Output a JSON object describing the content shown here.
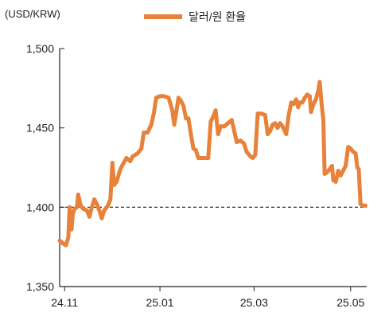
{
  "chart_data": {
    "type": "line",
    "unit_label": "(USD/KRW)",
    "series": [
      {
        "name": "달러/원 환율",
        "color": "#E8823A",
        "points": [
          [
            0.0,
            1379
          ],
          [
            1.5,
            1377
          ],
          [
            2.5,
            1376
          ],
          [
            3.5,
            1381
          ],
          [
            4.0,
            1400
          ],
          [
            4.8,
            1386
          ],
          [
            5.3,
            1396
          ],
          [
            6.0,
            1399
          ],
          [
            7.0,
            1400
          ],
          [
            7.5,
            1408
          ],
          [
            8.5,
            1401
          ],
          [
            9.5,
            1399
          ],
          [
            11.0,
            1398
          ],
          [
            12.0,
            1394
          ],
          [
            13.0,
            1400
          ],
          [
            14.0,
            1405
          ],
          [
            15.0,
            1402
          ],
          [
            16.0,
            1398
          ],
          [
            17.0,
            1393
          ],
          [
            18.0,
            1398
          ],
          [
            19.5,
            1401
          ],
          [
            20.5,
            1405
          ],
          [
            21.3,
            1428
          ],
          [
            22.0,
            1414
          ],
          [
            23.0,
            1416
          ],
          [
            24.5,
            1424
          ],
          [
            25.5,
            1427
          ],
          [
            27.0,
            1431
          ],
          [
            28.5,
            1429
          ],
          [
            29.5,
            1432
          ],
          [
            31.5,
            1434
          ],
          [
            33.0,
            1437
          ],
          [
            34.0,
            1447
          ],
          [
            35.5,
            1447
          ],
          [
            37.0,
            1452
          ],
          [
            38.0,
            1459
          ],
          [
            39.0,
            1469
          ],
          [
            40.5,
            1470
          ],
          [
            42.0,
            1470
          ],
          [
            44.0,
            1469
          ],
          [
            45.5,
            1461
          ],
          [
            46.3,
            1452
          ],
          [
            47.0,
            1459
          ],
          [
            48.0,
            1469
          ],
          [
            49.0,
            1467
          ],
          [
            50.0,
            1464
          ],
          [
            51.0,
            1456
          ],
          [
            52.0,
            1456
          ],
          [
            53.0,
            1446
          ],
          [
            54.0,
            1437
          ],
          [
            55.0,
            1436
          ],
          [
            56.0,
            1431
          ],
          [
            57.0,
            1431
          ],
          [
            58.5,
            1431
          ],
          [
            60.0,
            1431
          ],
          [
            61.0,
            1454
          ],
          [
            62.0,
            1457
          ],
          [
            63.0,
            1461
          ],
          [
            64.0,
            1446
          ],
          [
            65.0,
            1451
          ],
          [
            66.5,
            1451
          ],
          [
            68.0,
            1453
          ],
          [
            69.5,
            1455
          ],
          [
            70.5,
            1448
          ],
          [
            71.5,
            1441
          ],
          [
            73.0,
            1442
          ],
          [
            74.5,
            1440
          ],
          [
            75.5,
            1435
          ],
          [
            77.0,
            1432
          ],
          [
            78.0,
            1431
          ],
          [
            79.0,
            1433
          ],
          [
            80.0,
            1459
          ],
          [
            81.5,
            1459
          ],
          [
            83.0,
            1458
          ],
          [
            84.0,
            1446
          ],
          [
            85.0,
            1448
          ],
          [
            86.0,
            1452
          ],
          [
            87.0,
            1453
          ],
          [
            88.0,
            1450
          ],
          [
            89.0,
            1453
          ],
          [
            90.0,
            1451
          ],
          [
            91.5,
            1446
          ],
          [
            92.5,
            1458
          ],
          [
            93.5,
            1466
          ],
          [
            94.5,
            1465
          ],
          [
            95.5,
            1468
          ],
          [
            96.3,
            1463
          ],
          [
            97.0,
            1466
          ],
          [
            98.0,
            1466
          ],
          [
            99.0,
            1469
          ],
          [
            100.0,
            1471
          ],
          [
            101.0,
            1470
          ],
          [
            101.5,
            1460
          ],
          [
            102.5,
            1465
          ],
          [
            103.5,
            1468
          ],
          [
            104.5,
            1474
          ],
          [
            105.0,
            1479
          ],
          [
            105.8,
            1465
          ],
          [
            106.5,
            1455
          ],
          [
            107.0,
            1421
          ],
          [
            108.0,
            1422
          ],
          [
            109.0,
            1424
          ],
          [
            110.0,
            1426
          ],
          [
            110.5,
            1417
          ],
          [
            111.5,
            1416
          ],
          [
            112.5,
            1423
          ],
          [
            113.5,
            1420
          ],
          [
            114.5,
            1423
          ],
          [
            115.5,
            1426
          ],
          [
            116.5,
            1438
          ],
          [
            117.5,
            1437
          ],
          [
            118.5,
            1435
          ],
          [
            119.5,
            1434
          ],
          [
            120.2,
            1425
          ],
          [
            120.8,
            1424
          ],
          [
            121.5,
            1402
          ],
          [
            122.5,
            1401
          ],
          [
            123.5,
            1401
          ]
        ]
      }
    ],
    "reference_line": {
      "y": 1400,
      "style": "dashed",
      "color": "#222222"
    },
    "ylim": [
      1350,
      1500
    ],
    "yticks": [
      1350,
      1400,
      1450,
      1500
    ],
    "ytick_labels": [
      "1,350",
      "1,400",
      "1,450",
      "1,500"
    ],
    "xlim": [
      0,
      124
    ],
    "xticks": [
      2,
      40.5,
      78.5,
      117.5
    ],
    "xtick_labels": [
      "24.11",
      "25.01",
      "25.03",
      "25.05"
    ],
    "grid": false,
    "legend_position": "top-center"
  }
}
